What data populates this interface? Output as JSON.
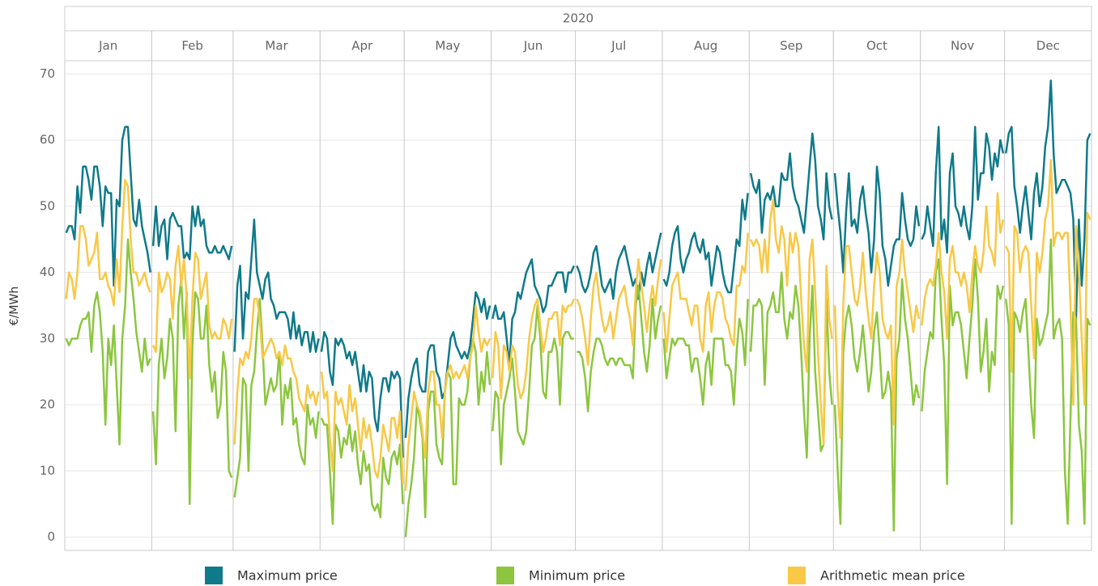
{
  "chart_data": {
    "type": "line",
    "year": "2020",
    "ylabel": "€/MWh",
    "categories": [
      "Jan",
      "Feb",
      "Mar",
      "Apr",
      "May",
      "Jun",
      "Jul",
      "Aug",
      "Sep",
      "Oct",
      "Nov",
      "Dec"
    ],
    "ylim": [
      -2,
      72
    ],
    "yticks": [
      0,
      10,
      20,
      30,
      40,
      50,
      60,
      70
    ],
    "grid": true,
    "series": [
      {
        "name": "Maximum price",
        "color": "#0f7a8a",
        "values": [
          [
            46,
            47,
            47,
            45,
            53,
            49,
            56,
            56,
            54,
            51,
            56,
            56,
            53,
            47,
            53,
            52,
            52,
            38,
            51,
            50,
            60,
            62,
            62,
            55,
            48,
            47,
            51,
            47,
            45,
            43,
            40
          ],
          [
            44,
            50,
            44,
            47,
            48,
            42,
            48,
            49,
            48,
            47,
            47,
            42,
            43,
            42,
            50,
            47,
            50,
            47,
            48,
            44,
            43,
            43,
            44,
            43,
            43,
            44,
            43,
            42,
            44
          ],
          [
            28,
            38,
            41,
            30,
            37,
            36,
            42,
            48,
            40,
            38,
            36,
            39,
            40,
            36,
            35,
            33,
            34,
            34,
            34,
            33,
            30,
            34,
            30,
            32,
            29,
            31,
            31,
            28,
            31,
            28,
            30
          ],
          [
            28,
            31,
            30,
            25,
            23,
            30,
            29,
            30,
            29,
            27,
            28,
            26,
            28,
            25,
            22,
            26,
            22,
            25,
            24,
            18,
            16,
            21,
            24,
            24,
            22,
            25,
            24,
            25,
            24,
            12
          ],
          [
            15,
            21,
            24,
            26,
            27,
            23,
            22,
            22,
            28,
            29,
            29,
            25,
            24,
            21,
            22,
            26,
            30,
            31,
            29,
            28,
            27,
            28,
            27,
            29,
            33,
            37,
            36,
            34,
            36,
            33,
            35
          ],
          [
            33,
            35,
            33,
            33,
            34,
            30,
            26,
            33,
            34,
            37,
            36,
            38,
            40,
            41,
            42,
            38,
            37,
            36,
            34,
            35,
            38,
            38,
            39,
            40,
            40,
            40,
            37,
            40,
            40,
            41
          ],
          [
            41,
            40,
            38,
            37,
            38,
            40,
            43,
            44,
            41,
            38,
            37,
            38,
            39,
            36,
            40,
            42,
            43,
            44,
            42,
            40,
            38,
            39,
            36,
            40,
            38,
            41,
            43,
            40,
            42,
            44,
            46
          ],
          [
            39,
            38,
            40,
            44,
            46,
            47,
            42,
            40,
            42,
            43,
            45,
            46,
            44,
            43,
            45,
            42,
            43,
            38,
            41,
            44,
            43,
            40,
            38,
            37,
            37,
            41,
            45,
            44,
            51,
            48,
            52
          ],
          [
            55,
            53,
            52,
            54,
            46,
            51,
            52,
            51,
            53,
            50,
            50,
            55,
            54,
            54,
            58,
            53,
            51,
            50,
            48,
            46,
            51,
            56,
            61,
            57,
            50,
            48,
            45,
            55,
            50,
            48
          ],
          [
            55,
            50,
            46,
            40,
            49,
            55,
            47,
            48,
            46,
            51,
            53,
            49,
            46,
            40,
            45,
            56,
            52,
            44,
            42,
            38,
            41,
            44,
            45,
            45,
            52,
            48,
            45,
            44,
            45,
            50,
            47
          ],
          [
            45,
            46,
            50,
            47,
            44,
            55,
            62,
            45,
            48,
            43,
            55,
            58,
            50,
            49,
            47,
            50,
            47,
            45,
            50,
            62,
            51,
            55,
            55,
            61,
            59,
            54,
            58,
            56,
            60,
            58
          ],
          [
            58,
            61,
            62,
            53,
            50,
            46,
            50,
            53,
            49,
            45,
            52,
            55,
            50,
            53,
            59,
            62,
            69,
            58,
            52,
            53,
            54,
            54,
            53,
            52,
            48,
            33,
            48,
            38,
            45,
            60,
            61
          ]
        ]
      },
      {
        "name": "Minimum price",
        "color": "#8cc63f",
        "values": [
          [
            30,
            29,
            30,
            30,
            30,
            32,
            33,
            33,
            34,
            28,
            35,
            37,
            34,
            28,
            17,
            30,
            26,
            32,
            23,
            14,
            30,
            35,
            45,
            40,
            36,
            31,
            28,
            25,
            30,
            26,
            27
          ],
          [
            19,
            11,
            26,
            30,
            24,
            27,
            33,
            30,
            16,
            35,
            39,
            30,
            37,
            5,
            29,
            37,
            36,
            30,
            30,
            35,
            26,
            22,
            25,
            18,
            20,
            28,
            25,
            10,
            9
          ],
          [
            6,
            9,
            12,
            24,
            23,
            10,
            23,
            25,
            31,
            36,
            29,
            20,
            22,
            24,
            22,
            23,
            28,
            17,
            23,
            21,
            24,
            17,
            18,
            14,
            12,
            11,
            20,
            17,
            18,
            15,
            19
          ],
          [
            18,
            17,
            17,
            10,
            2,
            17,
            16,
            12,
            15,
            14,
            17,
            13,
            16,
            11,
            8,
            13,
            10,
            11,
            5,
            4,
            5,
            3,
            12,
            9,
            8,
            12,
            13,
            11,
            14,
            5
          ],
          [
            0,
            5,
            8,
            12,
            20,
            18,
            15,
            3,
            19,
            22,
            22,
            14,
            12,
            11,
            22,
            25,
            24,
            8,
            8,
            21,
            20,
            20,
            22,
            27,
            30,
            28,
            20,
            25,
            22,
            28,
            23
          ],
          [
            16,
            22,
            21,
            11,
            20,
            22,
            24,
            27,
            22,
            16,
            15,
            14,
            16,
            22,
            29,
            30,
            35,
            30,
            22,
            21,
            28,
            28,
            30,
            28,
            20,
            30,
            31,
            31,
            30,
            30
          ],
          [
            28,
            28,
            27,
            24,
            19,
            25,
            28,
            30,
            30,
            29,
            27,
            26,
            27,
            27,
            26,
            27,
            27,
            26,
            26,
            26,
            24,
            35,
            38,
            33,
            28,
            25,
            29,
            36,
            30,
            33,
            35
          ],
          [
            30,
            24,
            27,
            30,
            29,
            30,
            30,
            30,
            29,
            29,
            25,
            27,
            27,
            24,
            20,
            26,
            28,
            23,
            30,
            30,
            30,
            30,
            26,
            26,
            25,
            20,
            28,
            33,
            31,
            26,
            36
          ],
          [
            28,
            35,
            35,
            36,
            35,
            23,
            34,
            35,
            37,
            34,
            34,
            40,
            33,
            30,
            34,
            33,
            38,
            35,
            28,
            19,
            12,
            30,
            38,
            25,
            19,
            13,
            14,
            36,
            25,
            20
          ],
          [
            20,
            10,
            2,
            28,
            33,
            35,
            32,
            27,
            25,
            28,
            32,
            27,
            22,
            25,
            31,
            34,
            28,
            21,
            22,
            25,
            22,
            1,
            27,
            30,
            39,
            33,
            30,
            25,
            20,
            23,
            21
          ],
          [
            19,
            25,
            28,
            31,
            30,
            40,
            42,
            33,
            26,
            8,
            38,
            32,
            34,
            34,
            32,
            28,
            24,
            30,
            35,
            42,
            36,
            25,
            28,
            33,
            22,
            28,
            26,
            38,
            36,
            38
          ],
          [
            36,
            32,
            2,
            34,
            33,
            31,
            34,
            36,
            28,
            20,
            15,
            33,
            29,
            30,
            32,
            34,
            45,
            30,
            32,
            33,
            30,
            10,
            2,
            18,
            34,
            33,
            17,
            13,
            2,
            33,
            32
          ]
        ]
      },
      {
        "name": "Arithmetic mean price",
        "color": "#f8c846",
        "values": [
          [
            36,
            40,
            39,
            36,
            40,
            47,
            47,
            45,
            41,
            42,
            43,
            46,
            39,
            39,
            40,
            38,
            37,
            35,
            42,
            37,
            47,
            54,
            53,
            45,
            40,
            40,
            38,
            39,
            40,
            38,
            37
          ],
          [
            29,
            28,
            40,
            37,
            38,
            40,
            39,
            33,
            41,
            44,
            38,
            42,
            36,
            24,
            36,
            43,
            42,
            36,
            38,
            40,
            32,
            30,
            31,
            30,
            30,
            33,
            32,
            30,
            33
          ],
          [
            14,
            22,
            27,
            26,
            28,
            27,
            30,
            36,
            36,
            33,
            27,
            28,
            29,
            30,
            29,
            27,
            28,
            26,
            29,
            27,
            27,
            25,
            24,
            21,
            20,
            19,
            23,
            21,
            22,
            20,
            22
          ],
          [
            25,
            21,
            22,
            15,
            10,
            22,
            20,
            21,
            19,
            17,
            23,
            19,
            21,
            17,
            13,
            18,
            15,
            17,
            14,
            10,
            9,
            12,
            17,
            15,
            13,
            18,
            18,
            15,
            19,
            8
          ],
          [
            7,
            14,
            18,
            22,
            20,
            19,
            16,
            12,
            22,
            25,
            25,
            20,
            20,
            15,
            22,
            25,
            26,
            24,
            25,
            24,
            25,
            26,
            24,
            27,
            29,
            35,
            31,
            28,
            30,
            29,
            30
          ],
          [
            24,
            31,
            29,
            21,
            29,
            28,
            25,
            29,
            28,
            23,
            21,
            22,
            25,
            30,
            33,
            35,
            36,
            32,
            28,
            30,
            33,
            33,
            34,
            34,
            29,
            35,
            34,
            35,
            35,
            36
          ],
          [
            36,
            35,
            33,
            30,
            26,
            33,
            38,
            40,
            36,
            33,
            31,
            32,
            34,
            30,
            33,
            36,
            37,
            38,
            35,
            33,
            29,
            37,
            42,
            38,
            35,
            31,
            35,
            38,
            35,
            39,
            42
          ],
          [
            34,
            28,
            33,
            38,
            39,
            40,
            36,
            36,
            36,
            34,
            32,
            35,
            35,
            30,
            28,
            35,
            37,
            31,
            35,
            37,
            37,
            36,
            33,
            32,
            30,
            29,
            38,
            38,
            41,
            40,
            46
          ],
          [
            45,
            44,
            45,
            44,
            40,
            45,
            40,
            48,
            51,
            45,
            43,
            47,
            45,
            38,
            46,
            43,
            46,
            44,
            36,
            29,
            25,
            42,
            45,
            37,
            28,
            20,
            14,
            41,
            33,
            30
          ],
          [
            35,
            22,
            15,
            35,
            44,
            44,
            40,
            36,
            35,
            38,
            43,
            37,
            33,
            30,
            38,
            43,
            40,
            33,
            31,
            30,
            32,
            17,
            38,
            40,
            45,
            40,
            37,
            34,
            31,
            35,
            33
          ],
          [
            32,
            36,
            38,
            39,
            38,
            41,
            46,
            40,
            37,
            30,
            42,
            44,
            40,
            40,
            38,
            40,
            38,
            34,
            40,
            44,
            41,
            40,
            43,
            50,
            44,
            43,
            41,
            52,
            46,
            48
          ],
          [
            44,
            43,
            25,
            47,
            46,
            40,
            43,
            44,
            43,
            35,
            27,
            43,
            40,
            43,
            48,
            50,
            57,
            44,
            46,
            46,
            45,
            46,
            46,
            35,
            20,
            47,
            40,
            30,
            20,
            49,
            48
          ]
        ]
      }
    ]
  }
}
